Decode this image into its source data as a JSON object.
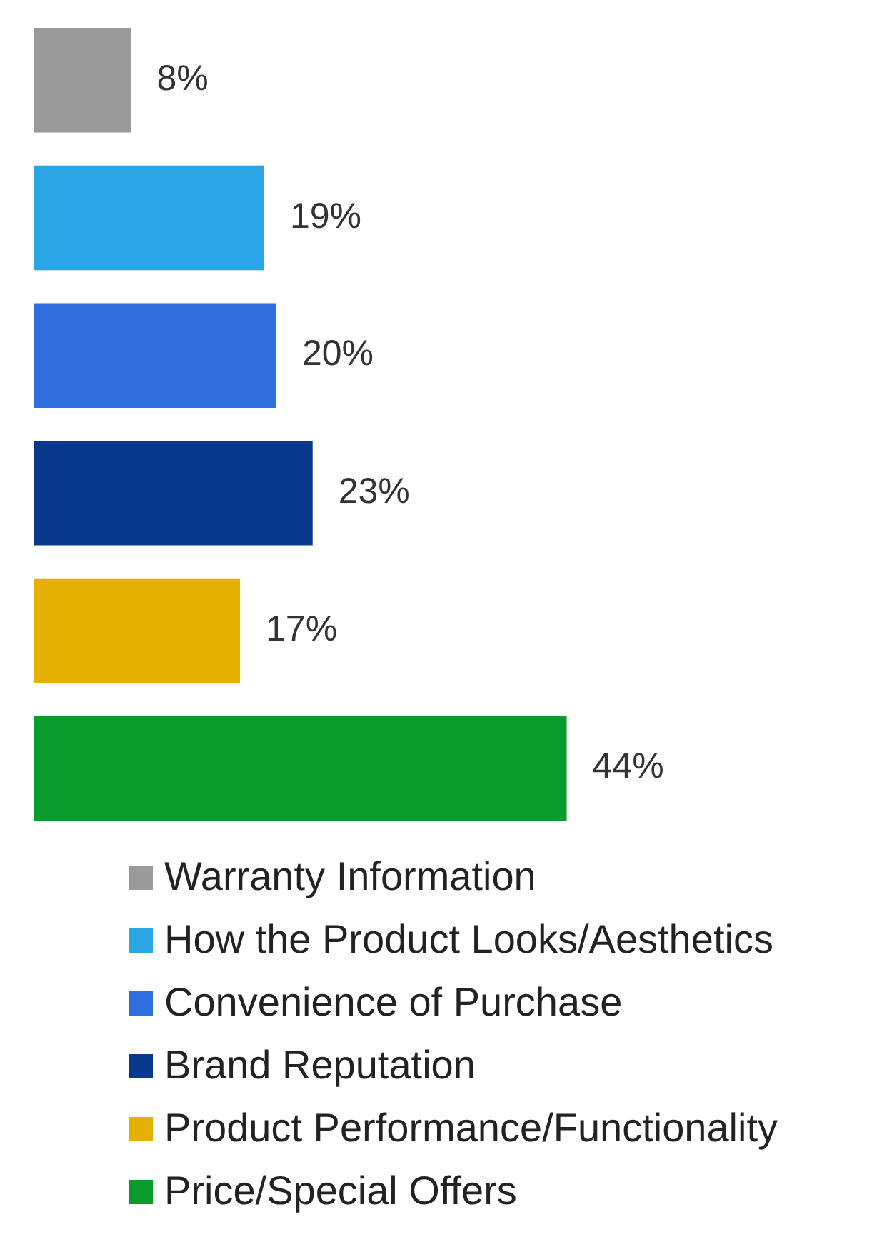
{
  "chart_data": {
    "type": "bar",
    "orientation": "horizontal",
    "stacked": true,
    "legend": "bottom",
    "categories": [
      null,
      null,
      null,
      null,
      null,
      null
    ],
    "series": [
      {
        "name": "Warranty Information",
        "color": "#9a9a9a",
        "values": [
          8,
          null,
          null,
          null,
          null,
          null
        ],
        "value_labels": [
          "8%",
          null,
          null,
          null,
          null,
          null
        ]
      },
      {
        "name": "How the Product Looks/Aesthetics",
        "color": "#2aa4e4",
        "values": [
          null,
          19,
          null,
          null,
          null,
          null
        ],
        "value_labels": [
          null,
          "19%",
          null,
          null,
          null,
          null
        ]
      },
      {
        "name": "Convenience of Purchase",
        "color": "#2f6fde",
        "values": [
          null,
          null,
          20,
          null,
          null,
          null
        ],
        "value_labels": [
          null,
          null,
          "20%",
          null,
          null,
          null
        ]
      },
      {
        "name": "Brand Reputation",
        "color": "#08398c",
        "values": [
          null,
          null,
          null,
          23,
          null,
          null
        ],
        "value_labels": [
          null,
          null,
          null,
          "23%",
          null,
          null
        ]
      },
      {
        "name": "Product Performance/Functionality",
        "color": "#e6b000",
        "values": [
          null,
          null,
          null,
          null,
          17,
          null
        ],
        "value_labels": [
          null,
          null,
          null,
          null,
          "17%",
          null
        ]
      },
      {
        "name": "Price/Special Offers",
        "color": "#0a9c2c",
        "values": [
          null,
          null,
          null,
          null,
          null,
          44
        ],
        "value_labels": [
          null,
          null,
          null,
          null,
          null,
          "44%"
        ]
      }
    ]
  }
}
